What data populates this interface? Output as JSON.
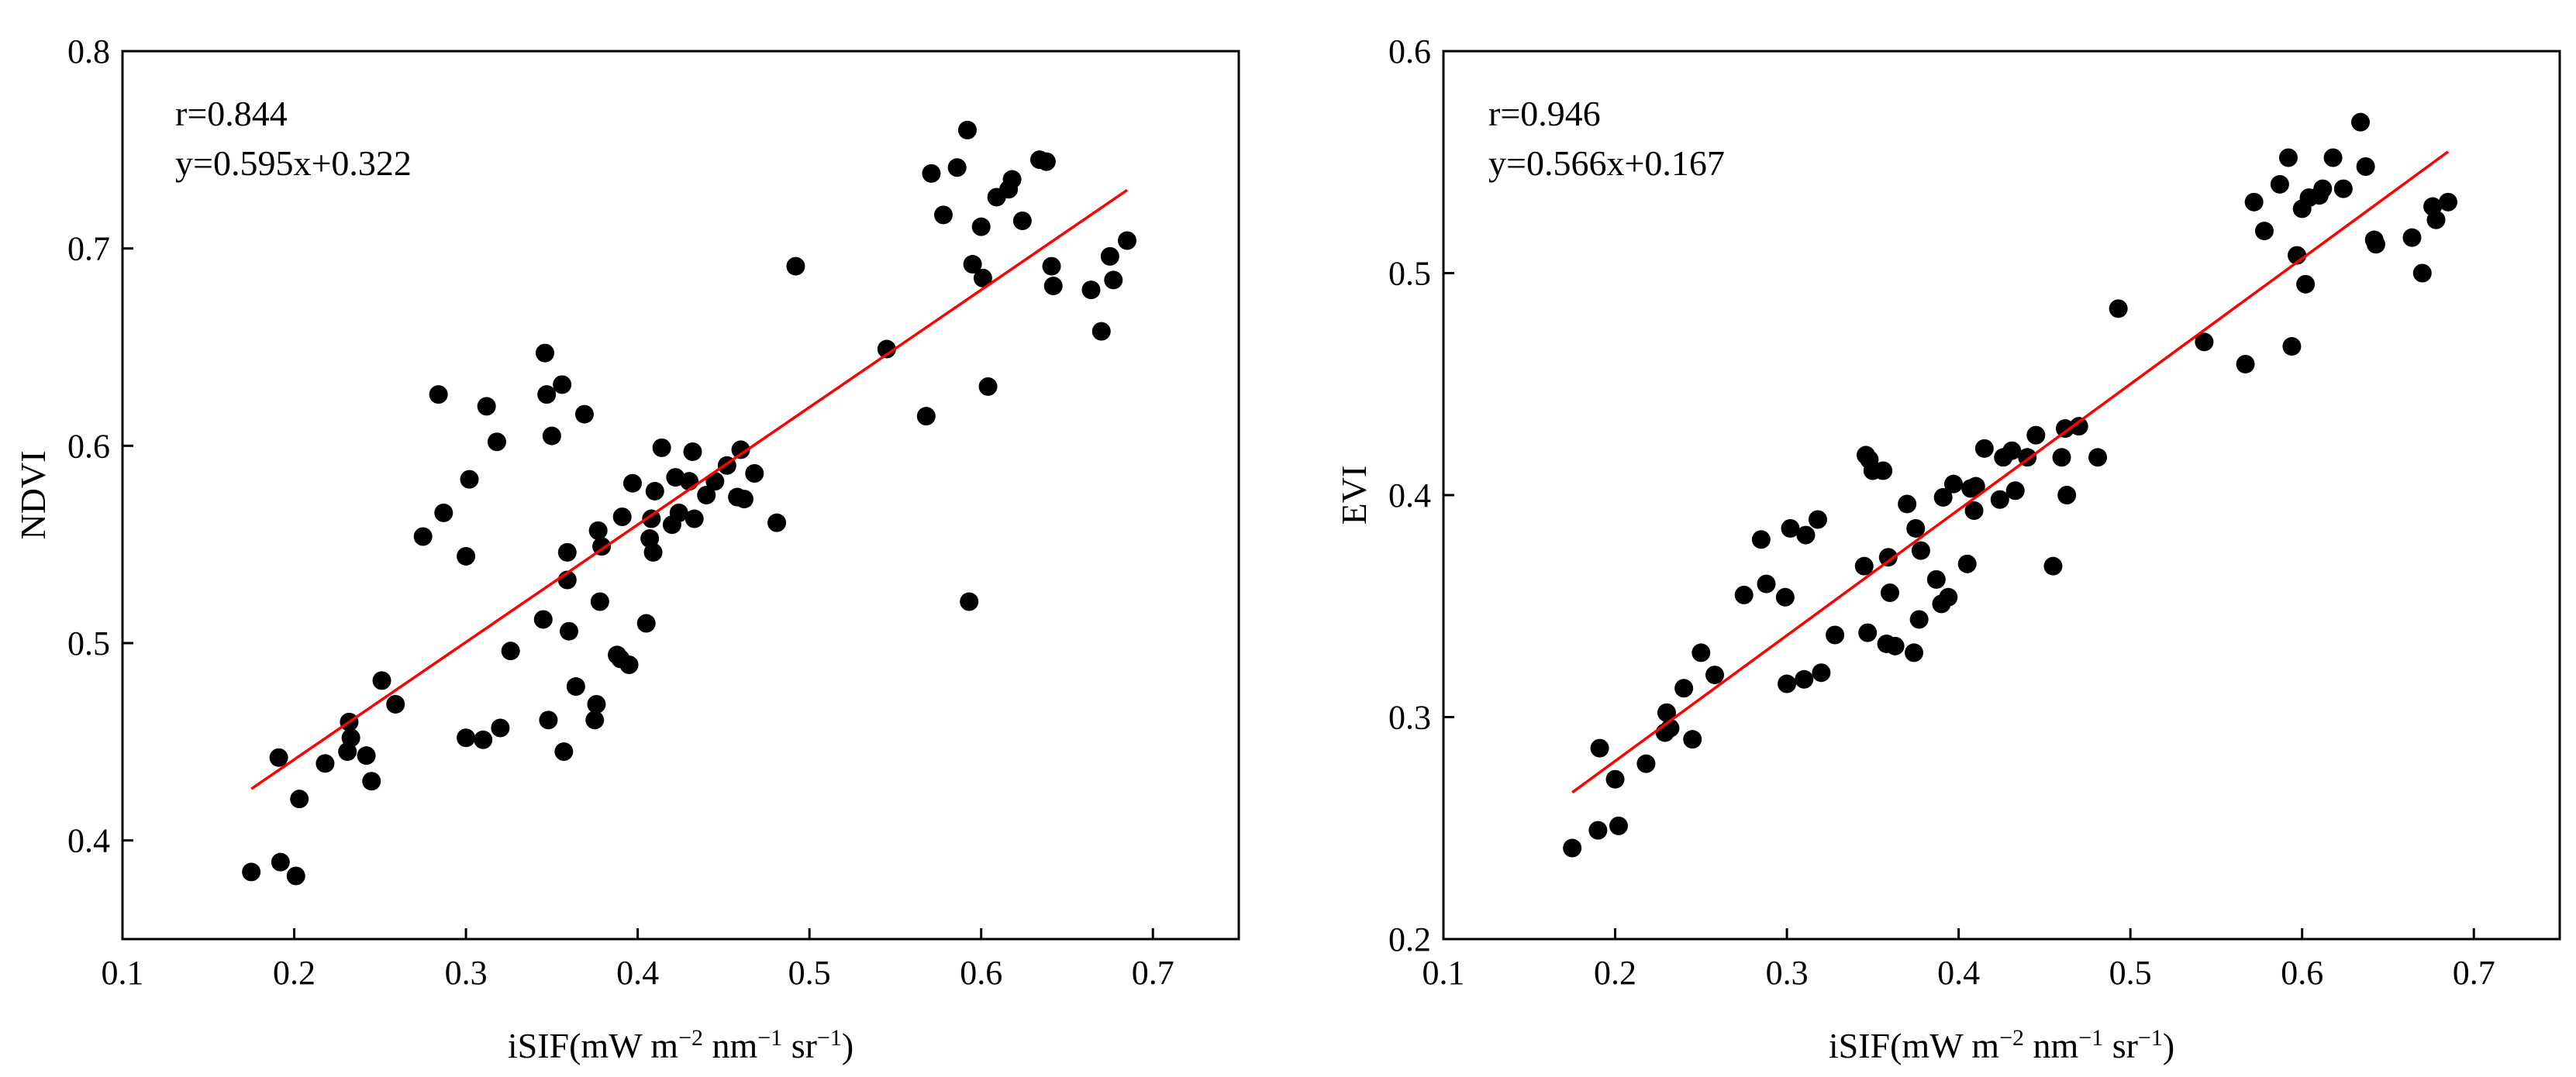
{
  "chart_data": [
    {
      "type": "scatter",
      "id": "ndvi",
      "ylabel": "NDVI",
      "xlabel_base": "iSIF(mW m",
      "xlabel_parts": [
        "iSIF(mW m",
        "−2",
        " nm",
        "−1",
        " sr",
        "−1",
        ")"
      ],
      "xlim": [
        0.1,
        0.75
      ],
      "ylim": [
        0.35,
        0.8
      ],
      "xticks": [
        "0.1",
        "0.2",
        "0.3",
        "0.4",
        "0.5",
        "0.6",
        "0.7"
      ],
      "yticks": [
        "0.4",
        "0.5",
        "0.6",
        "0.7",
        "0.8"
      ],
      "annotations": [
        "r=0.844",
        "y=0.595x+0.322"
      ],
      "fit": {
        "slope": 0.595,
        "intercept": 0.322,
        "x_range": [
          0.175,
          0.685
        ],
        "color": "#ff0000"
      },
      "marker_color": "#000000",
      "points": [
        [
          0.175,
          0.384
        ],
        [
          0.192,
          0.389
        ],
        [
          0.201,
          0.382
        ],
        [
          0.191,
          0.442
        ],
        [
          0.203,
          0.421
        ],
        [
          0.218,
          0.439
        ],
        [
          0.231,
          0.445
        ],
        [
          0.232,
          0.46
        ],
        [
          0.233,
          0.452
        ],
        [
          0.242,
          0.443
        ],
        [
          0.245,
          0.43
        ],
        [
          0.251,
          0.481
        ],
        [
          0.259,
          0.469
        ],
        [
          0.275,
          0.554
        ],
        [
          0.284,
          0.626
        ],
        [
          0.287,
          0.566
        ],
        [
          0.3,
          0.544
        ],
        [
          0.3,
          0.452
        ],
        [
          0.302,
          0.583
        ],
        [
          0.31,
          0.451
        ],
        [
          0.312,
          0.62
        ],
        [
          0.318,
          0.602
        ],
        [
          0.32,
          0.457
        ],
        [
          0.326,
          0.496
        ],
        [
          0.345,
          0.512
        ],
        [
          0.346,
          0.647
        ],
        [
          0.347,
          0.626
        ],
        [
          0.348,
          0.461
        ],
        [
          0.35,
          0.605
        ],
        [
          0.356,
          0.631
        ],
        [
          0.357,
          0.445
        ],
        [
          0.359,
          0.546
        ],
        [
          0.359,
          0.532
        ],
        [
          0.36,
          0.506
        ],
        [
          0.364,
          0.478
        ],
        [
          0.369,
          0.616
        ],
        [
          0.375,
          0.461
        ],
        [
          0.376,
          0.469
        ],
        [
          0.377,
          0.557
        ],
        [
          0.378,
          0.521
        ],
        [
          0.379,
          0.549
        ],
        [
          0.388,
          0.494
        ],
        [
          0.39,
          0.492
        ],
        [
          0.391,
          0.564
        ],
        [
          0.395,
          0.489
        ],
        [
          0.397,
          0.581
        ],
        [
          0.405,
          0.51
        ],
        [
          0.407,
          0.553
        ],
        [
          0.408,
          0.563
        ],
        [
          0.409,
          0.546
        ],
        [
          0.41,
          0.577
        ],
        [
          0.414,
          0.599
        ],
        [
          0.42,
          0.56
        ],
        [
          0.422,
          0.584
        ],
        [
          0.424,
          0.566
        ],
        [
          0.43,
          0.582
        ],
        [
          0.432,
          0.597
        ],
        [
          0.433,
          0.563
        ],
        [
          0.44,
          0.575
        ],
        [
          0.445,
          0.582
        ],
        [
          0.452,
          0.59
        ],
        [
          0.458,
          0.574
        ],
        [
          0.46,
          0.598
        ],
        [
          0.462,
          0.573
        ],
        [
          0.468,
          0.586
        ],
        [
          0.481,
          0.561
        ],
        [
          0.492,
          0.691
        ],
        [
          0.545,
          0.649
        ],
        [
          0.568,
          0.615
        ],
        [
          0.571,
          0.738
        ],
        [
          0.578,
          0.717
        ],
        [
          0.586,
          0.741
        ],
        [
          0.592,
          0.76
        ],
        [
          0.593,
          0.521
        ],
        [
          0.595,
          0.692
        ],
        [
          0.6,
          0.711
        ],
        [
          0.601,
          0.685
        ],
        [
          0.604,
          0.63
        ],
        [
          0.609,
          0.726
        ],
        [
          0.616,
          0.73
        ],
        [
          0.618,
          0.735
        ],
        [
          0.624,
          0.714
        ],
        [
          0.634,
          0.745
        ],
        [
          0.638,
          0.744
        ],
        [
          0.641,
          0.691
        ],
        [
          0.642,
          0.681
        ],
        [
          0.664,
          0.679
        ],
        [
          0.67,
          0.658
        ],
        [
          0.675,
          0.696
        ],
        [
          0.677,
          0.684
        ],
        [
          0.685,
          0.704
        ]
      ]
    },
    {
      "type": "scatter",
      "id": "evi",
      "ylabel": "EVI",
      "xlabel_base": "iSIF(mW m",
      "xlabel_parts": [
        "iSIF(mW m",
        "−2",
        " nm",
        "−1",
        " sr",
        "−1",
        ")"
      ],
      "xlim": [
        0.1,
        0.75
      ],
      "ylim": [
        0.2,
        0.6
      ],
      "xticks": [
        "0.1",
        "0.2",
        "0.3",
        "0.4",
        "0.5",
        "0.6",
        "0.7"
      ],
      "yticks": [
        "0.2",
        "0.3",
        "0.4",
        "0.5",
        "0.6"
      ],
      "annotations": [
        "r=0.946",
        "y=0.566x+0.167"
      ],
      "fit": {
        "slope": 0.566,
        "intercept": 0.167,
        "x_range": [
          0.175,
          0.685
        ],
        "color": "#ff0000"
      },
      "marker_color": "#000000",
      "points": [
        [
          0.175,
          0.241
        ],
        [
          0.19,
          0.249
        ],
        [
          0.191,
          0.286
        ],
        [
          0.2,
          0.272
        ],
        [
          0.202,
          0.251
        ],
        [
          0.218,
          0.279
        ],
        [
          0.229,
          0.293
        ],
        [
          0.23,
          0.302
        ],
        [
          0.232,
          0.295
        ],
        [
          0.24,
          0.313
        ],
        [
          0.245,
          0.29
        ],
        [
          0.25,
          0.329
        ],
        [
          0.258,
          0.319
        ],
        [
          0.275,
          0.355
        ],
        [
          0.285,
          0.38
        ],
        [
          0.288,
          0.36
        ],
        [
          0.299,
          0.354
        ],
        [
          0.3,
          0.315
        ],
        [
          0.302,
          0.385
        ],
        [
          0.31,
          0.317
        ],
        [
          0.311,
          0.382
        ],
        [
          0.318,
          0.389
        ],
        [
          0.32,
          0.32
        ],
        [
          0.328,
          0.337
        ],
        [
          0.345,
          0.368
        ],
        [
          0.346,
          0.418
        ],
        [
          0.347,
          0.338
        ],
        [
          0.348,
          0.416
        ],
        [
          0.35,
          0.411
        ],
        [
          0.356,
          0.411
        ],
        [
          0.358,
          0.333
        ],
        [
          0.359,
          0.372
        ],
        [
          0.36,
          0.356
        ],
        [
          0.363,
          0.332
        ],
        [
          0.37,
          0.396
        ],
        [
          0.374,
          0.329
        ],
        [
          0.375,
          0.385
        ],
        [
          0.377,
          0.344
        ],
        [
          0.378,
          0.375
        ],
        [
          0.387,
          0.362
        ],
        [
          0.39,
          0.351
        ],
        [
          0.391,
          0.399
        ],
        [
          0.394,
          0.354
        ],
        [
          0.397,
          0.405
        ],
        [
          0.405,
          0.369
        ],
        [
          0.407,
          0.403
        ],
        [
          0.409,
          0.393
        ],
        [
          0.41,
          0.404
        ],
        [
          0.415,
          0.421
        ],
        [
          0.424,
          0.398
        ],
        [
          0.426,
          0.417
        ],
        [
          0.431,
          0.42
        ],
        [
          0.433,
          0.402
        ],
        [
          0.44,
          0.417
        ],
        [
          0.445,
          0.427
        ],
        [
          0.455,
          0.368
        ],
        [
          0.46,
          0.417
        ],
        [
          0.462,
          0.43
        ],
        [
          0.463,
          0.4
        ],
        [
          0.47,
          0.431
        ],
        [
          0.481,
          0.417
        ],
        [
          0.493,
          0.484
        ],
        [
          0.543,
          0.469
        ],
        [
          0.567,
          0.459
        ],
        [
          0.572,
          0.532
        ],
        [
          0.578,
          0.519
        ],
        [
          0.587,
          0.54
        ],
        [
          0.592,
          0.552
        ],
        [
          0.594,
          0.467
        ],
        [
          0.597,
          0.508
        ],
        [
          0.6,
          0.529
        ],
        [
          0.602,
          0.495
        ],
        [
          0.604,
          0.534
        ],
        [
          0.61,
          0.535
        ],
        [
          0.612,
          0.538
        ],
        [
          0.618,
          0.552
        ],
        [
          0.624,
          0.538
        ],
        [
          0.634,
          0.568
        ],
        [
          0.637,
          0.548
        ],
        [
          0.642,
          0.515
        ],
        [
          0.643,
          0.513
        ],
        [
          0.664,
          0.516
        ],
        [
          0.67,
          0.5
        ],
        [
          0.676,
          0.53
        ],
        [
          0.678,
          0.524
        ],
        [
          0.685,
          0.532
        ]
      ]
    }
  ]
}
